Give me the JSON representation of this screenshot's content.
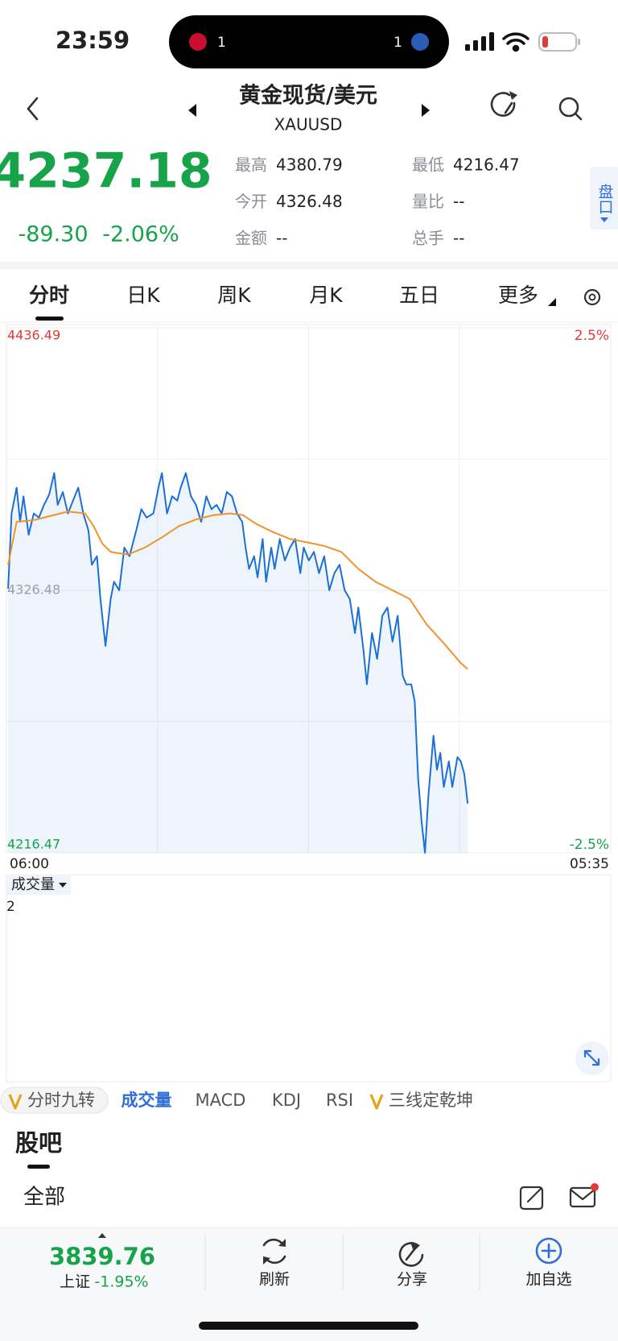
{
  "status": {
    "time": "23:59",
    "island_left": "1",
    "island_right": "1"
  },
  "header": {
    "title": "黄金现货/美元",
    "symbol": "XAUUSD"
  },
  "quote": {
    "price": "4237.18",
    "change": "-89.30",
    "change_pct": "-2.06%",
    "stats": [
      {
        "label": "最高",
        "value": "4380.79"
      },
      {
        "label": "最低",
        "value": "4216.47"
      },
      {
        "label": "今开",
        "value": "4326.48"
      },
      {
        "label": "量比",
        "value": "--"
      },
      {
        "label": "金额",
        "value": "--"
      },
      {
        "label": "总手",
        "value": "--"
      }
    ],
    "side_tab": "盘口"
  },
  "tabs": [
    "分时",
    "日K",
    "周K",
    "月K",
    "五日",
    "更多"
  ],
  "chart_data": {
    "type": "line",
    "grid": true,
    "xlim": [
      0,
      1415
    ],
    "xticks": [
      {
        "value": 0,
        "label": "06:00"
      },
      {
        "value": 1415,
        "label": "05:35"
      }
    ],
    "ylim": [
      4216.47,
      4436.49
    ],
    "yticks": [
      4436.49,
      4326.48,
      4216.47
    ],
    "y2lim": [
      -2.5,
      2.5
    ],
    "y2ticks": [
      {
        "value": 2.5,
        "label": "2.5%"
      },
      {
        "value": -2.5,
        "label": "-2.5%"
      }
    ],
    "series": [
      {
        "color": "#1b6fd6",
        "area": true,
        "x": [
          4,
          12,
          24,
          32,
          40,
          52,
          64,
          76,
          88,
          100,
          112,
          120,
          132,
          144,
          156,
          168,
          180,
          192,
          200,
          212,
          220,
          232,
          244,
          252,
          264,
          276,
          288,
          304,
          316,
          328,
          344,
          356,
          364,
          376,
          388,
          400,
          408,
          420,
          432,
          444,
          456,
          468,
          480,
          492,
          504,
          516,
          528,
          540,
          552,
          560,
          568,
          580,
          588,
          600,
          608,
          620,
          628,
          640,
          652,
          664,
          676,
          688,
          696,
          708,
          720,
          732,
          744,
          756,
          768,
          780,
          792,
          804,
          816,
          824,
          836,
          844,
          856,
          868,
          880,
          892,
          904,
          916,
          928,
          936,
          948,
          956,
          964,
          972,
          980,
          988,
          1000,
          1008,
          1016,
          1024,
          1036,
          1044,
          1056,
          1064,
          1072,
          1080
        ],
        "values": [
          4327.2,
          4358.7,
          4369.5,
          4355.2,
          4365.9,
          4349.8,
          4358.7,
          4357.0,
          4362.3,
          4366.6,
          4375.6,
          4362.3,
          4367.7,
          4358.7,
          4364.1,
          4369.5,
          4358.7,
          4351.6,
          4337.2,
          4340.8,
          4322.9,
          4303.2,
          4322.9,
          4330.1,
          4326.5,
          4344.4,
          4340.8,
          4351.6,
          4360.5,
          4357.0,
          4358.7,
          4369.5,
          4375.6,
          4358.7,
          4365.9,
          4364.1,
          4369.5,
          4375.6,
          4365.9,
          4362.3,
          4355.2,
          4365.9,
          4360.5,
          4362.3,
          4358.7,
          4367.7,
          4365.9,
          4358.7,
          4355.2,
          4344.4,
          4335.5,
          4340.8,
          4331.9,
          4348.0,
          4330.1,
          4344.4,
          4335.5,
          4348.0,
          4339.0,
          4344.4,
          4348.0,
          4333.7,
          4344.4,
          4339.0,
          4342.6,
          4333.7,
          4340.8,
          4326.5,
          4333.7,
          4337.2,
          4326.5,
          4322.9,
          4308.6,
          4319.3,
          4301.4,
          4287.1,
          4308.6,
          4297.8,
          4315.8,
          4319.3,
          4305.0,
          4315.8,
          4290.7,
          4287.1,
          4287.1,
          4279.9,
          4247.7,
          4229.8,
          4216.5,
          4240.5,
          4265.6,
          4251.3,
          4258.4,
          4244.1,
          4254.8,
          4244.1,
          4256.6,
          4254.8,
          4249.5,
          4237.18
        ]
      },
      {
        "color": "#f0932b",
        "area": false,
        "x": [
          4,
          24,
          64,
          104,
          144,
          184,
          204,
          224,
          244,
          284,
          324,
          364,
          404,
          444,
          484,
          524,
          554,
          584,
          624,
          664,
          704,
          744,
          784,
          824,
          864,
          904,
          944,
          964,
          984,
          1024,
          1064,
          1080
        ],
        "values": [
          4337.2,
          4355.2,
          4355.9,
          4357.7,
          4359.5,
          4358.7,
          4353.4,
          4346.2,
          4342.6,
          4341.5,
          4344.4,
          4348.7,
          4353.4,
          4356.2,
          4358.0,
          4358.7,
          4358.0,
          4354.4,
          4350.9,
          4348.0,
          4346.6,
          4345.1,
          4342.6,
          4335.5,
          4330.1,
          4326.5,
          4322.9,
          4317.5,
          4312.2,
          4304.3,
          4296.0,
          4293.5
        ]
      }
    ]
  },
  "volume_panel": {
    "label": "成交量",
    "scale": "2"
  },
  "indicators": [
    "分时九转",
    "成交量",
    "MACD",
    "KDJ",
    "RSI",
    "三线定乾坤"
  ],
  "forum": {
    "title": "股吧",
    "filter": "全部"
  },
  "bottom": {
    "index_value": "3839.76",
    "index_name": "上证",
    "index_change": "-1.95%",
    "actions": [
      "刷新",
      "分享",
      "加自选"
    ]
  }
}
